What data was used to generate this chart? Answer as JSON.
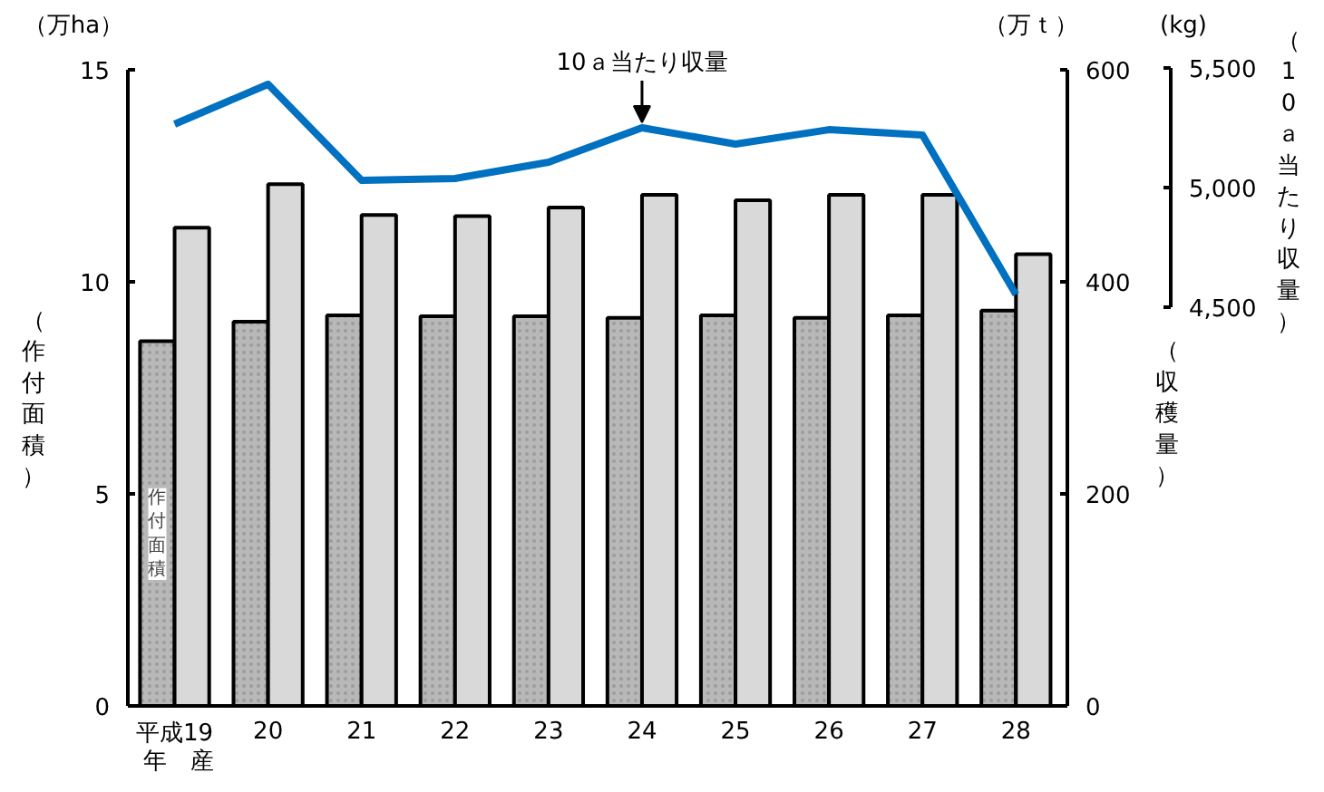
{
  "chart_data": {
    "type": "bar",
    "categories": [
      "平成19",
      "20",
      "21",
      "22",
      "23",
      "24",
      "25",
      "26",
      "27",
      "28"
    ],
    "series": [
      {
        "name": "作付面積",
        "type": "bar",
        "color": "#b8b8b8",
        "values": [
          8.6,
          9.06,
          9.21,
          9.19,
          9.19,
          9.15,
          9.21,
          9.15,
          9.21,
          9.32
        ]
      },
      {
        "type": "bar",
        "axis": "y2",
        "color": "#d9d9d9",
        "values": [
          451,
          492,
          463,
          462,
          470,
          482,
          477,
          482,
          482,
          426
        ]
      },
      {
        "name": "10ａ当たり収量",
        "type": "line",
        "axis": "y3",
        "color": "#0070c0",
        "values": [
          5265,
          5432,
          5030,
          5038,
          5106,
          5250,
          5182,
          5242,
          5220,
          4553
        ]
      }
    ],
    "ylabel": "（作付面積）",
    "y2label": "（収穫量）",
    "y3label": "（10ａ当たり収量）",
    "ylim": [
      0,
      15
    ],
    "yticks": [
      0,
      5,
      10,
      15
    ],
    "y2lim": [
      0,
      600
    ],
    "y2ticks": [
      0,
      200,
      400,
      600
    ],
    "y3lim": [
      4500,
      5500
    ],
    "y3ticks": [
      {
        "value": 4500,
        "label": "4,500"
      },
      {
        "value": 5000,
        "label": "5,000"
      },
      {
        "value": 5500,
        "label": "5,500"
      }
    ],
    "annotations": [
      "（万ha）",
      "（万ｔ）",
      "(kg)",
      "年　産"
    ],
    "marker": "none",
    "grid": false
  }
}
